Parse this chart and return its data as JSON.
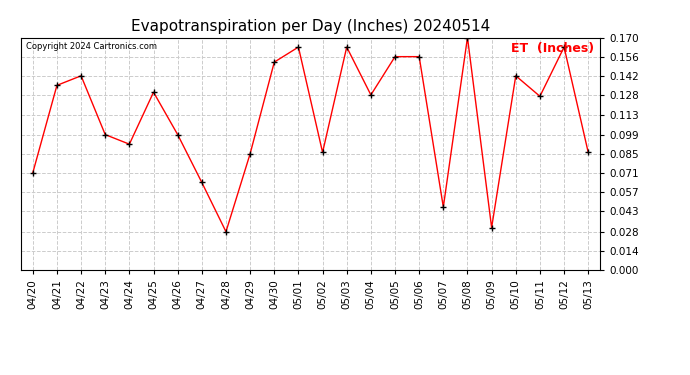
{
  "title": "Evapotranspiration per Day (Inches) 20240514",
  "copyright": "Copyright 2024 Cartronics.com",
  "legend_label": "ET  (Inches)",
  "dates": [
    "04/20",
    "04/21",
    "04/22",
    "04/23",
    "04/24",
    "04/25",
    "04/26",
    "04/27",
    "04/28",
    "04/29",
    "04/30",
    "05/01",
    "05/02",
    "05/03",
    "05/04",
    "05/05",
    "05/06",
    "05/07",
    "05/08",
    "05/09",
    "05/10",
    "05/11",
    "05/12",
    "05/13"
  ],
  "values": [
    0.071,
    0.135,
    0.142,
    0.099,
    0.092,
    0.13,
    0.099,
    0.064,
    0.028,
    0.085,
    0.152,
    0.163,
    0.086,
    0.163,
    0.128,
    0.156,
    0.156,
    0.046,
    0.17,
    0.031,
    0.142,
    0.127,
    0.163,
    0.086
  ],
  "ylim": [
    0.0,
    0.17
  ],
  "yticks": [
    0.0,
    0.014,
    0.028,
    0.043,
    0.057,
    0.071,
    0.085,
    0.099,
    0.113,
    0.128,
    0.142,
    0.156,
    0.17
  ],
  "line_color": "red",
  "marker": "+",
  "marker_color": "black",
  "grid_color": "#cccccc",
  "bg_color": "#ffffff",
  "title_fontsize": 11,
  "tick_fontsize": 7.5,
  "legend_color": "red",
  "legend_fontsize": 9,
  "copyright_fontsize": 6
}
